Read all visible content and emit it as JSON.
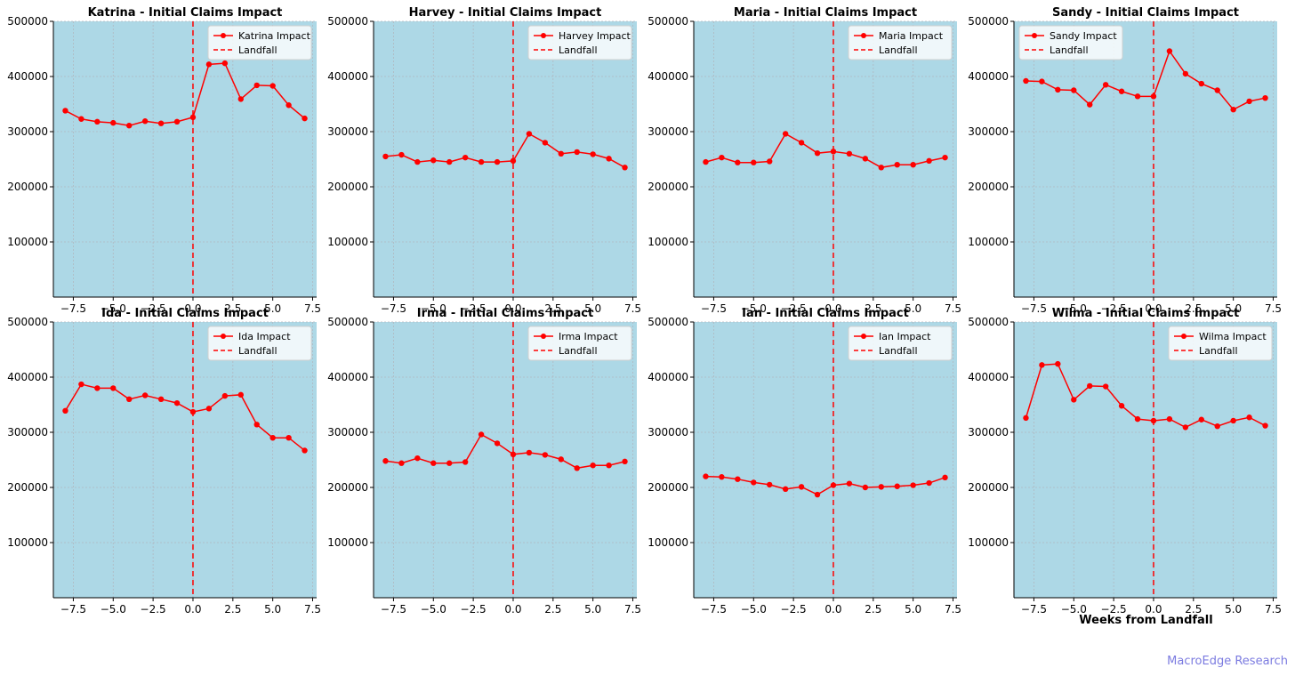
{
  "figure": {
    "watermark": "MacroEdge Research",
    "xlabel": "Weeks from Landfall",
    "colors": {
      "panel_bg": "#add8e6",
      "line": "#ff0000",
      "landfall": "#ff0000",
      "grid": "#b0b8c0"
    }
  },
  "chart_data": [
    {
      "type": "line",
      "title": "Katrina - Initial Claims Impact",
      "legend": [
        "Katrina Impact",
        "Landfall"
      ],
      "legend_position": "top-right",
      "x": [
        -8,
        -7,
        -6,
        -5,
        -4,
        -3,
        -2,
        -1,
        0,
        1,
        2,
        3,
        4,
        5,
        6,
        7
      ],
      "values": [
        338000,
        323000,
        318000,
        316000,
        311000,
        319000,
        315000,
        318000,
        326000,
        422000,
        424000,
        359000,
        384000,
        383000,
        348000,
        324000
      ],
      "landfall_x": 0,
      "xlim": [
        -8.75,
        7.75
      ],
      "ylim": [
        0,
        500000
      ],
      "xticks": [
        "−7.5",
        "−5.0",
        "−2.5",
        "0.0",
        "2.5",
        "5.0",
        "7.5"
      ],
      "yticks": [
        "100000",
        "200000",
        "300000",
        "400000",
        "500000"
      ]
    },
    {
      "type": "line",
      "title": "Harvey - Initial Claims Impact",
      "legend": [
        "Harvey Impact",
        "Landfall"
      ],
      "legend_position": "top-right",
      "x": [
        -8,
        -7,
        -6,
        -5,
        -4,
        -3,
        -2,
        -1,
        0,
        1,
        2,
        3,
        4,
        5,
        6,
        7
      ],
      "values": [
        255000,
        258000,
        245000,
        248000,
        245000,
        253000,
        245000,
        245000,
        247000,
        296000,
        280000,
        260000,
        263000,
        259000,
        251000,
        235000
      ],
      "landfall_x": 0,
      "xlim": [
        -8.75,
        7.75
      ],
      "ylim": [
        0,
        500000
      ],
      "xticks": [
        "−7.5",
        "−5.0",
        "−2.5",
        "0.0",
        "2.5",
        "5.0",
        "7.5"
      ],
      "yticks": [
        "100000",
        "200000",
        "300000",
        "400000",
        "500000"
      ]
    },
    {
      "type": "line",
      "title": "Maria - Initial Claims Impact",
      "legend": [
        "Maria Impact",
        "Landfall"
      ],
      "legend_position": "top-right",
      "x": [
        -8,
        -7,
        -6,
        -5,
        -4,
        -3,
        -2,
        -1,
        0,
        1,
        2,
        3,
        4,
        5,
        6,
        7
      ],
      "values": [
        245000,
        253000,
        244000,
        244000,
        246000,
        296000,
        280000,
        261000,
        264000,
        260000,
        251000,
        235000,
        240000,
        240000,
        247000,
        253000
      ],
      "landfall_x": 0,
      "xlim": [
        -8.75,
        7.75
      ],
      "ylim": [
        0,
        500000
      ],
      "xticks": [
        "−7.5",
        "−5.0",
        "−2.5",
        "0.0",
        "2.5",
        "5.0",
        "7.5"
      ],
      "yticks": [
        "100000",
        "200000",
        "300000",
        "400000",
        "500000"
      ]
    },
    {
      "type": "line",
      "title": "Sandy - Initial Claims Impact",
      "legend": [
        "Sandy Impact",
        "Landfall"
      ],
      "legend_position": "top-left",
      "x": [
        -8,
        -7,
        -6,
        -5,
        -4,
        -3,
        -2,
        -1,
        0,
        1,
        2,
        3,
        4,
        5,
        6,
        7
      ],
      "values": [
        392000,
        391000,
        376000,
        375000,
        349000,
        385000,
        373000,
        364000,
        364000,
        446000,
        405000,
        387000,
        375000,
        340000,
        355000,
        361000
      ],
      "landfall_x": 0,
      "xlim": [
        -8.75,
        7.75
      ],
      "ylim": [
        0,
        500000
      ],
      "xticks": [
        "−7.5",
        "−5.0",
        "−2.5",
        "0.0",
        "2.5",
        "5.0",
        "7.5"
      ],
      "yticks": [
        "100000",
        "200000",
        "300000",
        "400000",
        "500000"
      ]
    },
    {
      "type": "line",
      "title": "Ida - Initial Claims Impact",
      "legend": [
        "Ida Impact",
        "Landfall"
      ],
      "legend_position": "top-right",
      "x": [
        -8,
        -7,
        -6,
        -5,
        -4,
        -3,
        -2,
        -1,
        0,
        1,
        2,
        3,
        4,
        5,
        6,
        7
      ],
      "values": [
        339000,
        387000,
        380000,
        380000,
        360000,
        367000,
        360000,
        353000,
        337000,
        343000,
        366000,
        368000,
        314000,
        290000,
        290000,
        267000
      ],
      "landfall_x": 0,
      "xlim": [
        -8.75,
        7.75
      ],
      "ylim": [
        0,
        500000
      ],
      "xticks": [
        "−7.5",
        "−5.0",
        "−2.5",
        "0.0",
        "2.5",
        "5.0",
        "7.5"
      ],
      "yticks": [
        "100000",
        "200000",
        "300000",
        "400000",
        "500000"
      ]
    },
    {
      "type": "line",
      "title": "Irma - Initial Claims Impact",
      "legend": [
        "Irma Impact",
        "Landfall"
      ],
      "legend_position": "top-right",
      "x": [
        -8,
        -7,
        -6,
        -5,
        -4,
        -3,
        -2,
        -1,
        0,
        1,
        2,
        3,
        4,
        5,
        6,
        7
      ],
      "values": [
        248000,
        244000,
        253000,
        244000,
        244000,
        246000,
        296000,
        280000,
        260000,
        263000,
        259000,
        251000,
        235000,
        240000,
        240000,
        247000
      ],
      "landfall_x": 0,
      "xlim": [
        -8.75,
        7.75
      ],
      "ylim": [
        0,
        500000
      ],
      "xticks": [
        "−7.5",
        "−5.0",
        "−2.5",
        "0.0",
        "2.5",
        "5.0",
        "7.5"
      ],
      "yticks": [
        "100000",
        "200000",
        "300000",
        "400000",
        "500000"
      ]
    },
    {
      "type": "line",
      "title": "Ian - Initial Claims Impact",
      "legend": [
        "Ian Impact",
        "Landfall"
      ],
      "legend_position": "top-right",
      "x": [
        -8,
        -7,
        -6,
        -5,
        -4,
        -3,
        -2,
        -1,
        0,
        1,
        2,
        3,
        4,
        5,
        6,
        7
      ],
      "values": [
        220000,
        219000,
        215000,
        209000,
        205000,
        197000,
        201000,
        187000,
        204000,
        207000,
        200000,
        201000,
        202000,
        204000,
        208000,
        218000
      ],
      "landfall_x": 0,
      "xlim": [
        -8.75,
        7.75
      ],
      "ylim": [
        0,
        500000
      ],
      "xticks": [
        "−7.5",
        "−5.0",
        "−2.5",
        "0.0",
        "2.5",
        "5.0",
        "7.5"
      ],
      "yticks": [
        "100000",
        "200000",
        "300000",
        "400000",
        "500000"
      ]
    },
    {
      "type": "line",
      "title": "Wilma - Initial Claims Impact",
      "legend": [
        "Wilma Impact",
        "Landfall"
      ],
      "legend_position": "top-right",
      "x": [
        -8,
        -7,
        -6,
        -5,
        -4,
        -3,
        -2,
        -1,
        0,
        1,
        2,
        3,
        4,
        5,
        6,
        7
      ],
      "values": [
        326000,
        422000,
        424000,
        359000,
        384000,
        383000,
        348000,
        324000,
        321000,
        324000,
        309000,
        323000,
        311000,
        321000,
        327000,
        312000
      ],
      "landfall_x": 0,
      "xlim": [
        -8.75,
        7.75
      ],
      "ylim": [
        0,
        500000
      ],
      "xticks": [
        "−7.5",
        "−5.0",
        "−2.5",
        "0.0",
        "2.5",
        "5.0",
        "7.5"
      ],
      "yticks": [
        "100000",
        "200000",
        "300000",
        "400000",
        "500000"
      ]
    }
  ]
}
